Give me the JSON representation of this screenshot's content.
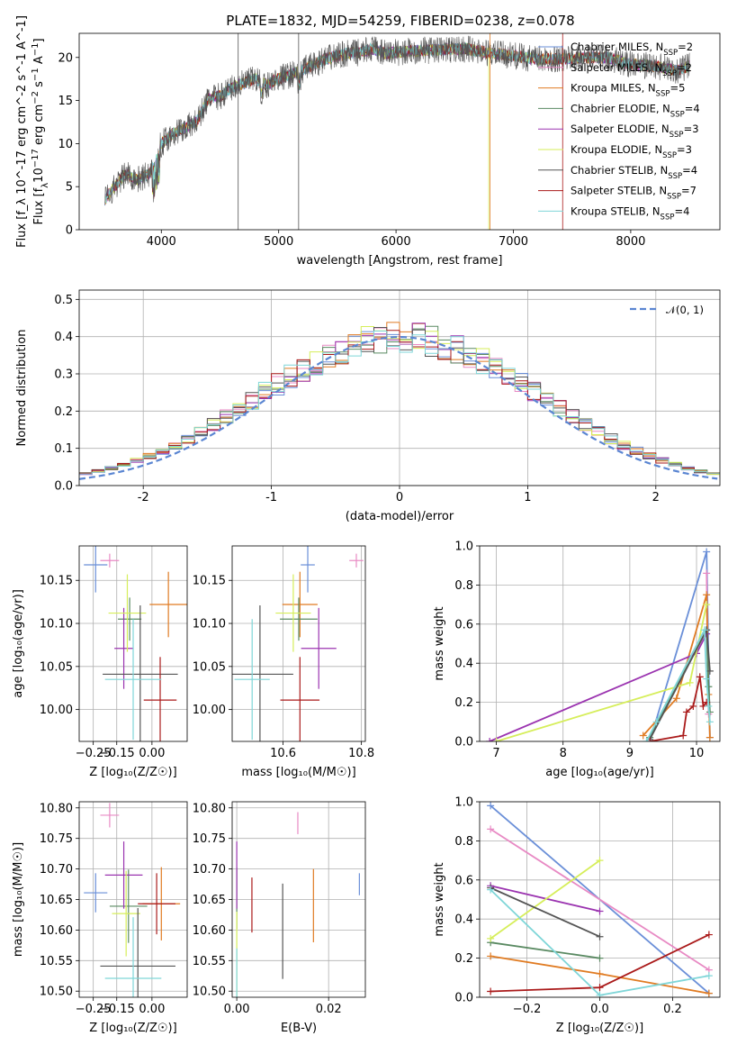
{
  "figure": {
    "title": "PLATE=1832, MJD=54259, FIBERID=0238, z=0.078"
  },
  "colors": [
    "#6a8fd8",
    "#e88ac4",
    "#e07b22",
    "#5a8a62",
    "#9b34b0",
    "#d6ee5a",
    "#555555",
    "#aa1a1a",
    "#7fd6d8"
  ],
  "chart_data": [
    {
      "id": "spectrum",
      "type": "line",
      "title": "PLATE=1832, MJD=54259, FIBERID=0238, z=0.078",
      "xlabel": "wavelength [Angstrom, rest frame]",
      "ylabel": "Flux [f_λ 10^-17 erg cm^-2 s^-1 A^-1]",
      "xlim": [
        3300,
        8760
      ],
      "ylim": [
        0,
        22.8
      ],
      "xticks": [
        4000,
        5000,
        6000,
        7000,
        8000
      ],
      "yticks": [
        0,
        5,
        10,
        15,
        20
      ],
      "legend": [
        "Chabrier MILES, N_SSP=2",
        "Salpeter MILES, N_SSP=2",
        "Kroupa MILES, N_SSP=5",
        "Chabrier ELODIE, N_SSP=4",
        "Salpeter ELODIE, N_SSP=3",
        "Kroupa ELODIE, N_SSP=3",
        "Chabrier STELIB, N_SSP=4",
        "Salpeter STELIB, N_SSP=7",
        "Kroupa STELIB, N_SSP=4"
      ],
      "legend_placement": "right",
      "continuum": [
        [
          3520,
          3.5
        ],
        [
          3600,
          5
        ],
        [
          3700,
          6.5
        ],
        [
          3800,
          5.8
        ],
        [
          3900,
          6.5
        ],
        [
          4000,
          10
        ],
        [
          4100,
          11.2
        ],
        [
          4200,
          11.8
        ],
        [
          4300,
          12.5
        ],
        [
          4400,
          15.2
        ],
        [
          4500,
          15.5
        ],
        [
          4600,
          16.5
        ],
        [
          4700,
          17
        ],
        [
          4800,
          17.5
        ],
        [
          4900,
          16.8
        ],
        [
          5000,
          17.6
        ],
        [
          5100,
          18
        ],
        [
          5200,
          18.5
        ],
        [
          5300,
          19.2
        ],
        [
          5400,
          19.8
        ],
        [
          5500,
          20.2
        ],
        [
          5600,
          20.5
        ],
        [
          5700,
          20.6
        ],
        [
          5800,
          21
        ],
        [
          5900,
          20.5
        ],
        [
          6000,
          20.6
        ],
        [
          6200,
          20.8
        ],
        [
          6400,
          20.9
        ],
        [
          6600,
          21
        ],
        [
          6800,
          20.5
        ],
        [
          7000,
          20.2
        ],
        [
          7200,
          19.8
        ],
        [
          7400,
          19.8
        ],
        [
          7600,
          20
        ],
        [
          7800,
          20
        ],
        [
          8000,
          19.2
        ],
        [
          8200,
          19
        ],
        [
          8400,
          18.5
        ],
        [
          8500,
          19
        ]
      ]
    },
    {
      "id": "residuals",
      "type": "histogram",
      "xlabel": "(data-model)/error",
      "ylabel": "Normed distribution",
      "xlim": [
        -2.5,
        2.5
      ],
      "ylim": [
        0,
        0.525
      ],
      "xticks": [
        -2,
        -1,
        0,
        1,
        2
      ],
      "yticks": [
        0.0,
        0.1,
        0.2,
        0.3,
        0.4,
        0.5
      ],
      "bin_width": 0.1,
      "curve_label": "𝒩(0, 1)",
      "curve_color": "#5b86d2"
    },
    {
      "id": "age_vs_Z",
      "type": "errorbar",
      "xlabel": "Z [log₁₀(Z/Z☉)]",
      "ylabel": "age  [log₁₀(age/yr)]",
      "xlim": [
        -0.31,
        0.15
      ],
      "ylim": [
        9.963,
        10.19
      ],
      "xticks": [
        -0.25,
        -0.15,
        0.0
      ],
      "xticklabels": [
        "−0.25",
        "−0.15",
        "0.00"
      ],
      "yticks": [
        10.0,
        10.05,
        10.1,
        10.15
      ],
      "yticklabels": [
        "10.00",
        "10.05",
        "10.10",
        "10.15"
      ],
      "points": [
        {
          "x": -0.24,
          "xerr": 0.05,
          "y": 10.168,
          "yerr": 0.032
        },
        {
          "x": -0.18,
          "xerr": 0.04,
          "y": 10.173,
          "yerr": 0.008
        },
        {
          "x": 0.07,
          "xerr": 0.08,
          "y": 10.122,
          "yerr": 0.038
        },
        {
          "x": -0.095,
          "xerr": 0.05,
          "y": 10.105,
          "yerr": 0.025
        },
        {
          "x": -0.12,
          "xerr": 0.04,
          "y": 10.071,
          "yerr": 0.047
        },
        {
          "x": -0.105,
          "xerr": 0.08,
          "y": 10.112,
          "yerr": 0.045
        },
        {
          "x": -0.05,
          "xerr": 0.16,
          "y": 10.041,
          "yerr": 0.08
        },
        {
          "x": 0.035,
          "xerr": 0.07,
          "y": 10.011,
          "yerr": 0.05
        },
        {
          "x": -0.08,
          "xerr": 0.12,
          "y": 10.035,
          "yerr": 0.07
        }
      ]
    },
    {
      "id": "age_vs_mass",
      "type": "errorbar",
      "xlabel": "mass [log₁₀(M/M☉)]",
      "ylabel": "",
      "xlim": [
        10.47,
        10.81
      ],
      "ylim": [
        9.963,
        10.19
      ],
      "xticks": [
        10.6,
        10.8
      ],
      "xticklabels": [
        "10.6",
        "10.8"
      ],
      "yticks": [
        10.0,
        10.05,
        10.1,
        10.15
      ],
      "yticklabels": [
        "10.00",
        "10.05",
        "10.10",
        "10.15"
      ],
      "points": [
        {
          "x": 10.663,
          "xerr": 0.018,
          "y": 10.168,
          "yerr": 0.032
        },
        {
          "x": 10.787,
          "xerr": 0.018,
          "y": 10.173,
          "yerr": 0.008
        },
        {
          "x": 10.643,
          "xerr": 0.045,
          "y": 10.122,
          "yerr": 0.038
        },
        {
          "x": 10.64,
          "xerr": 0.048,
          "y": 10.105,
          "yerr": 0.025
        },
        {
          "x": 10.691,
          "xerr": 0.045,
          "y": 10.071,
          "yerr": 0.047
        },
        {
          "x": 10.626,
          "xerr": 0.045,
          "y": 10.112,
          "yerr": 0.045
        },
        {
          "x": 10.541,
          "xerr": 0.085,
          "y": 10.041,
          "yerr": 0.08
        },
        {
          "x": 10.643,
          "xerr": 0.05,
          "y": 10.011,
          "yerr": 0.05
        },
        {
          "x": 10.521,
          "xerr": 0.045,
          "y": 10.035,
          "yerr": 0.07
        }
      ]
    },
    {
      "id": "mw_vs_age",
      "type": "line",
      "xlabel": "age  [log₁₀(age/yr)]",
      "ylabel": "mass weight",
      "xlim": [
        6.75,
        10.35
      ],
      "ylim": [
        0,
        1
      ],
      "xticks": [
        7,
        8,
        9,
        10
      ],
      "xticklabels": [
        "7",
        "8",
        "9",
        "10"
      ],
      "yticks": [
        0,
        0.2,
        0.4,
        0.6,
        0.8,
        1.0
      ],
      "yticklabels": [
        "0.0",
        "0.2",
        "0.4",
        "0.6",
        "0.8",
        "1.0"
      ],
      "series": [
        {
          "points": [
            [
              9.3,
              0.0
            ],
            [
              10.15,
              0.97
            ],
            [
              10.2,
              0.02
            ]
          ]
        },
        {
          "points": [
            [
              10.15,
              0.86
            ],
            [
              10.18,
              0.14
            ]
          ]
        },
        {
          "points": [
            [
              9.2,
              0.03
            ],
            [
              9.7,
              0.22
            ],
            [
              10.15,
              0.75
            ],
            [
              10.18,
              0.24
            ],
            [
              10.2,
              0.02
            ]
          ]
        },
        {
          "points": [
            [
              9.3,
              0.02
            ],
            [
              10.15,
              0.57
            ],
            [
              10.18,
              0.28
            ],
            [
              10.2,
              0.15
            ]
          ]
        },
        {
          "points": [
            [
              6.9,
              0.0
            ],
            [
              10.0,
              0.45
            ],
            [
              10.15,
              0.55
            ]
          ]
        },
        {
          "points": [
            [
              7.0,
              0.0
            ],
            [
              9.9,
              0.3
            ],
            [
              10.15,
              0.7
            ]
          ]
        },
        {
          "points": [
            [
              9.3,
              0.01
            ],
            [
              10.15,
              0.57
            ],
            [
              10.2,
              0.36
            ]
          ]
        },
        {
          "points": [
            [
              9.3,
              0.0
            ],
            [
              9.8,
              0.03
            ],
            [
              9.85,
              0.15
            ],
            [
              9.95,
              0.18
            ],
            [
              10.05,
              0.33
            ],
            [
              10.1,
              0.18
            ],
            [
              10.15,
              0.2
            ]
          ]
        },
        {
          "points": [
            [
              9.25,
              0.0
            ],
            [
              9.4,
              0.1
            ],
            [
              10.12,
              0.57
            ],
            [
              10.15,
              0.32
            ],
            [
              10.18,
              0.18
            ],
            [
              10.2,
              0.1
            ]
          ]
        }
      ]
    },
    {
      "id": "mass_vs_Z",
      "type": "errorbar",
      "xlabel": "Z [log₁₀(Z/Z☉)]",
      "ylabel": "mass [log₁₀(M/M☉)]",
      "xlim": [
        -0.31,
        0.15
      ],
      "ylim": [
        10.49,
        10.81
      ],
      "xticks": [
        -0.25,
        -0.15,
        0.0
      ],
      "xticklabels": [
        "−0.25",
        "−0.15",
        "0.00"
      ],
      "yticks": [
        10.5,
        10.55,
        10.6,
        10.65,
        10.7,
        10.75,
        10.8
      ],
      "yticklabels": [
        "10.50",
        "10.55",
        "10.60",
        "10.65",
        "10.70",
        "10.75",
        "10.80"
      ],
      "points": [
        {
          "x": -0.24,
          "xerr": 0.05,
          "y": 10.661,
          "yerr": 0.032
        },
        {
          "x": -0.18,
          "xerr": 0.04,
          "y": 10.788,
          "yerr": 0.02
        },
        {
          "x": 0.04,
          "xerr": 0.08,
          "y": 10.643,
          "yerr": 0.06
        },
        {
          "x": -0.1,
          "xerr": 0.08,
          "y": 10.639,
          "yerr": 0.06
        },
        {
          "x": -0.12,
          "xerr": 0.08,
          "y": 10.69,
          "yerr": 0.055
        },
        {
          "x": -0.11,
          "xerr": 0.06,
          "y": 10.627,
          "yerr": 0.07
        },
        {
          "x": -0.06,
          "xerr": 0.16,
          "y": 10.541,
          "yerr": 0.095
        },
        {
          "x": 0.02,
          "xerr": 0.08,
          "y": 10.643,
          "yerr": 0.05
        },
        {
          "x": -0.08,
          "xerr": 0.12,
          "y": 10.521,
          "yerr": 0.1
        }
      ]
    },
    {
      "id": "mass_vs_ebv",
      "type": "errorbar",
      "xlabel": "E(B-V)",
      "ylabel": "",
      "xlim": [
        -0.001,
        0.028
      ],
      "ylim": [
        10.49,
        10.81
      ],
      "xticks": [
        0.0,
        0.02
      ],
      "xticklabels": [
        "0.00",
        "0.02"
      ],
      "yticks": [
        10.5,
        10.55,
        10.6,
        10.65,
        10.7,
        10.75,
        10.8
      ],
      "yticklabels": [
        "10.50",
        "10.55",
        "10.60",
        "10.65",
        "10.70",
        "10.75",
        "10.80"
      ],
      "points": [
        {
          "x": 0.0267,
          "xerr": 0,
          "y": 10.675,
          "yerr": 0.018
        },
        {
          "x": 0.0133,
          "xerr": 0,
          "y": 10.775,
          "yerr": 0.018
        },
        {
          "x": 0.0167,
          "xerr": 0,
          "y": 10.64,
          "yerr": 0.06
        },
        {
          "x": 0.0,
          "xerr": 0,
          "y": 10.652,
          "yerr": 0.05
        },
        {
          "x": 0.0,
          "xerr": 0,
          "y": 10.69,
          "yerr": 0.055
        },
        {
          "x": 0.0,
          "xerr": 0,
          "y": 10.56,
          "yerr": 0.07
        },
        {
          "x": 0.01,
          "xerr": 0,
          "y": 10.598,
          "yerr": 0.078
        },
        {
          "x": 0.0033,
          "xerr": 0,
          "y": 10.641,
          "yerr": 0.045
        },
        {
          "x": 0.0,
          "xerr": 0,
          "y": 10.52,
          "yerr": 0.05
        }
      ]
    },
    {
      "id": "mw_vs_Z",
      "type": "line",
      "xlabel": "Z [log₁₀(Z/Z☉)]",
      "ylabel": "mass weight",
      "xlim": [
        -0.33,
        0.33
      ],
      "ylim": [
        0,
        1
      ],
      "xticks": [
        -0.2,
        0.0,
        0.2
      ],
      "xticklabels": [
        "−0.2",
        "0.0",
        "0.2"
      ],
      "yticks": [
        0,
        0.2,
        0.4,
        0.6,
        0.8,
        1.0
      ],
      "yticklabels": [
        "0.0",
        "0.2",
        "0.4",
        "0.6",
        "0.8",
        "1.0"
      ],
      "series": [
        {
          "points": [
            [
              -0.3,
              0.98
            ],
            [
              0.3,
              0.02
            ]
          ]
        },
        {
          "points": [
            [
              -0.3,
              0.86
            ],
            [
              0.3,
              0.14
            ]
          ]
        },
        {
          "points": [
            [
              -0.3,
              0.21
            ],
            [
              0.0,
              0.12
            ],
            [
              0.3,
              0.02
            ]
          ]
        },
        {
          "points": [
            [
              -0.3,
              0.28
            ],
            [
              0.0,
              0.2
            ]
          ]
        },
        {
          "points": [
            [
              -0.3,
              0.57
            ],
            [
              0.0,
              0.44
            ]
          ]
        },
        {
          "points": [
            [
              -0.3,
              0.3
            ],
            [
              0.0,
              0.7
            ]
          ]
        },
        {
          "points": [
            [
              -0.3,
              0.56
            ],
            [
              0.0,
              0.31
            ]
          ]
        },
        {
          "points": [
            [
              -0.3,
              0.03
            ],
            [
              0.0,
              0.05
            ],
            [
              0.3,
              0.32
            ]
          ]
        },
        {
          "points": [
            [
              -0.3,
              0.55
            ],
            [
              0.0,
              0.01
            ],
            [
              0.3,
              0.11
            ]
          ]
        }
      ]
    }
  ]
}
